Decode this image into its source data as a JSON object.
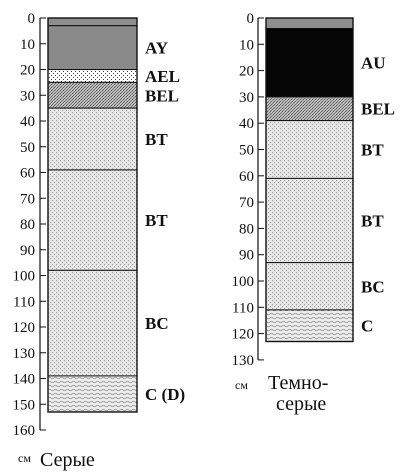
{
  "profiles": [
    {
      "caption_lines": [
        "Серые"
      ],
      "unit": "см",
      "depth_max": 160,
      "ticks": [
        0,
        10,
        20,
        30,
        40,
        50,
        60,
        70,
        80,
        90,
        100,
        110,
        120,
        130,
        140,
        150,
        160
      ],
      "horizons": [
        {
          "name": "",
          "top": 0,
          "bottom": 3,
          "pattern": "gray"
        },
        {
          "name": "AY",
          "top": 3,
          "bottom": 20,
          "pattern": "darkgray"
        },
        {
          "name": "AEL",
          "top": 20,
          "bottom": 25,
          "pattern": "dots"
        },
        {
          "name": "BEL",
          "top": 25,
          "bottom": 35,
          "pattern": "dense"
        },
        {
          "name": "BT",
          "top": 35,
          "bottom": 59,
          "pattern": "stipple"
        },
        {
          "name": "BT",
          "top": 59,
          "bottom": 98,
          "pattern": "stipple"
        },
        {
          "name": "BC",
          "top": 98,
          "bottom": 139,
          "pattern": "stipple"
        },
        {
          "name": "C (D)",
          "top": 139,
          "bottom": 153,
          "pattern": "waves"
        }
      ]
    },
    {
      "caption_lines": [
        "Темно-",
        "серые"
      ],
      "unit": "см",
      "depth_max": 130,
      "ticks": [
        0,
        10,
        20,
        30,
        40,
        50,
        60,
        70,
        80,
        90,
        100,
        110,
        120,
        130
      ],
      "horizons": [
        {
          "name": "",
          "top": 0,
          "bottom": 4,
          "pattern": "gray"
        },
        {
          "name": "AU",
          "top": 4,
          "bottom": 30,
          "pattern": "black"
        },
        {
          "name": "BEL",
          "top": 30,
          "bottom": 39,
          "pattern": "dense"
        },
        {
          "name": "BT",
          "top": 39,
          "bottom": 61,
          "pattern": "stipple"
        },
        {
          "name": "BT",
          "top": 61,
          "bottom": 93,
          "pattern": "stipple"
        },
        {
          "name": "BC",
          "top": 93,
          "bottom": 111,
          "pattern": "stipple"
        },
        {
          "name": "C",
          "top": 111,
          "bottom": 123,
          "pattern": "waves"
        }
      ]
    }
  ]
}
